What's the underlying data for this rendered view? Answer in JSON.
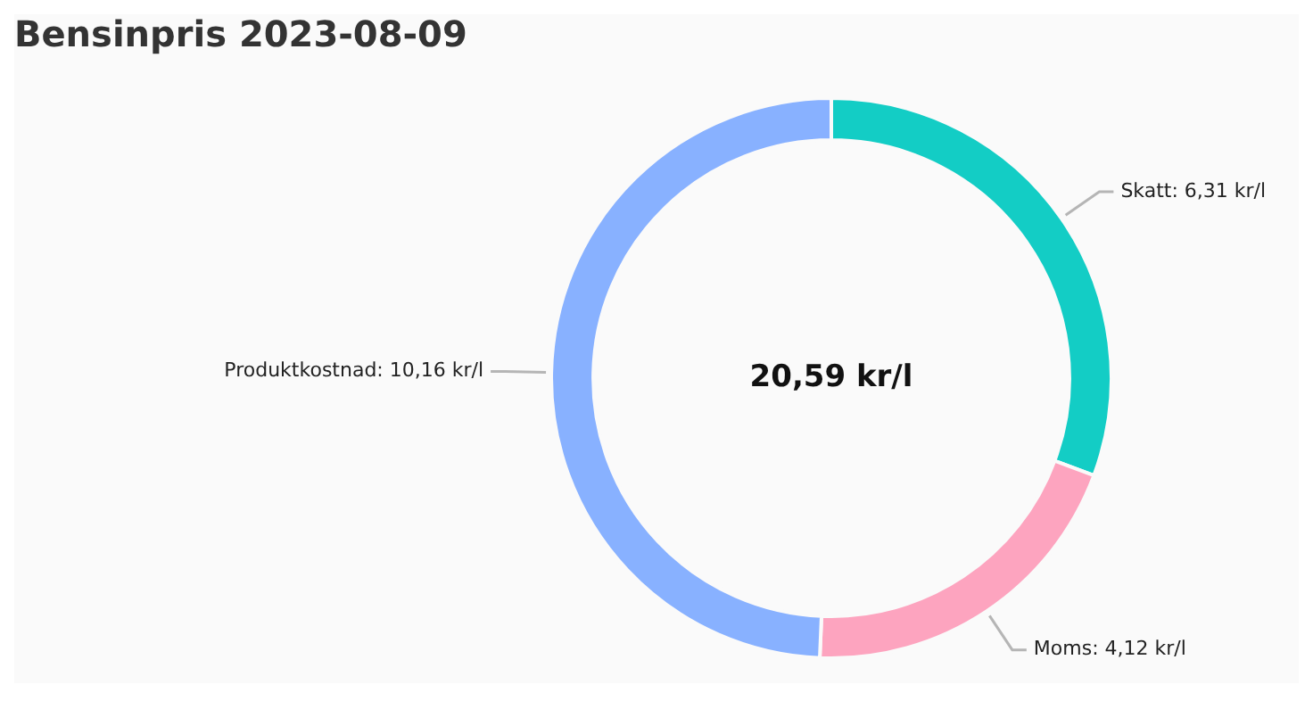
{
  "chart_data": {
    "type": "donut",
    "title": "Bensinpris 2023-08-09",
    "categories": [
      "Skatt",
      "Moms",
      "Produktkostnad"
    ],
    "values": [
      6.31,
      4.12,
      10.16
    ],
    "colors": [
      "#13cdc5",
      "#fda4bf",
      "#88b1ff"
    ],
    "value_labels": [
      "6,31 kr/l",
      "4,12 kr/l",
      "10,16 kr/l"
    ],
    "annotations": [
      "20,59 kr/l"
    ],
    "legend": false
  }
}
